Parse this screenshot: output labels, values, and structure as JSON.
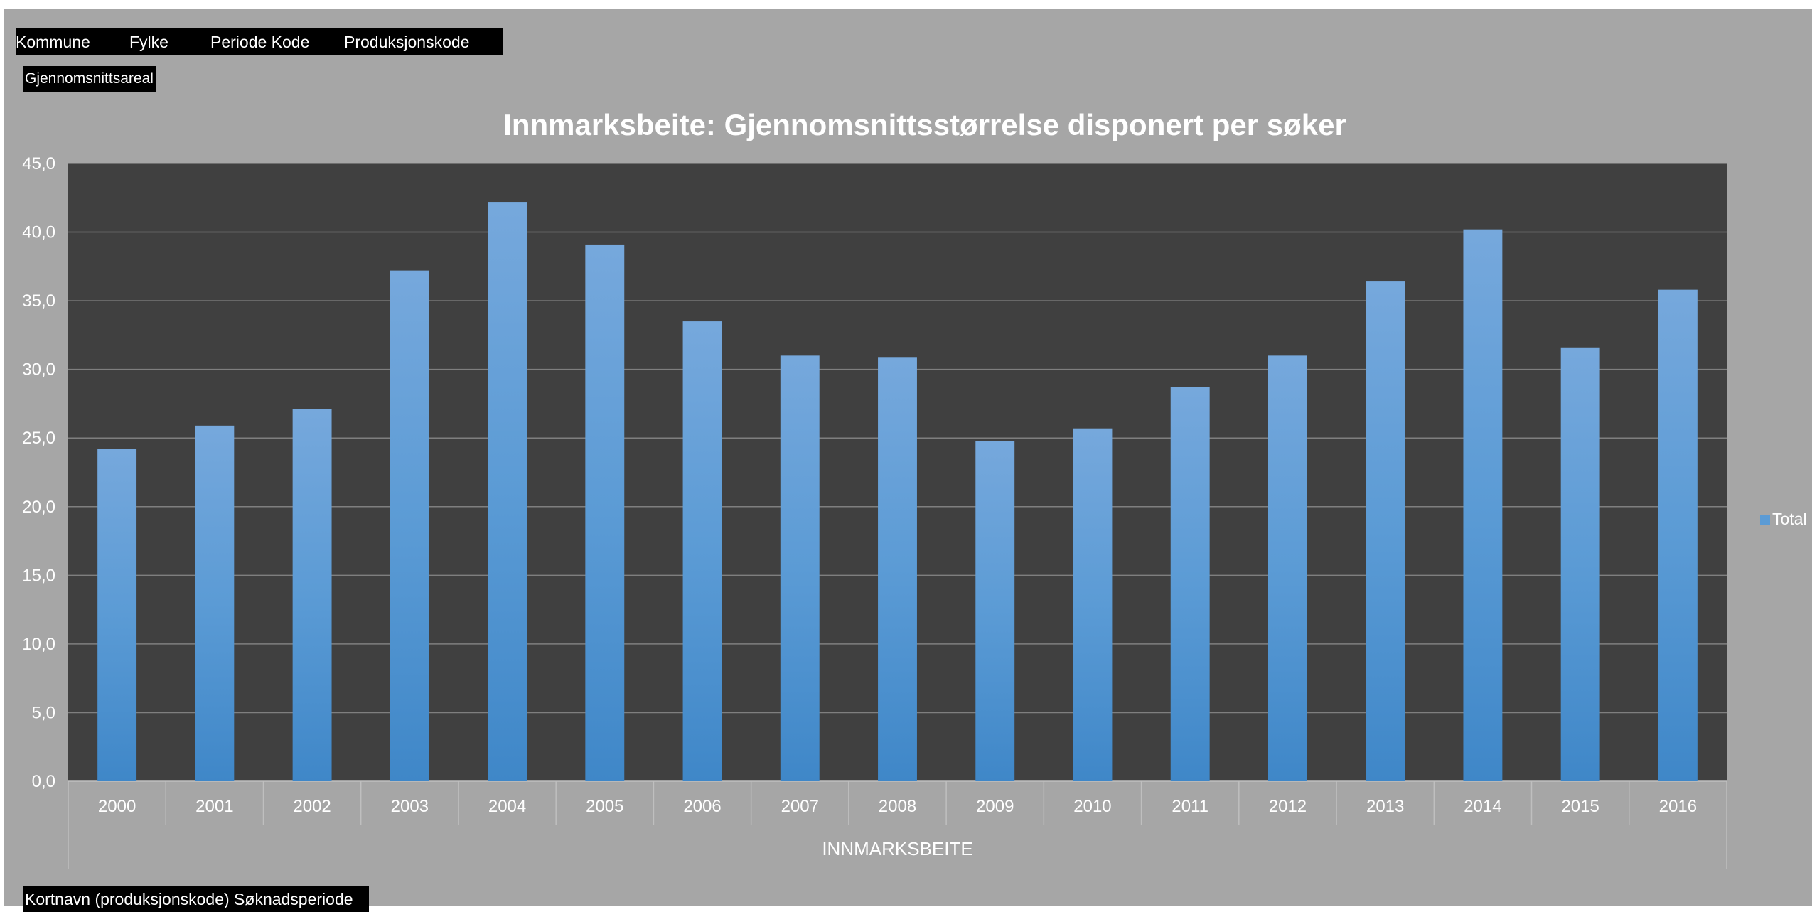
{
  "filters": {
    "kommune": "Kommune",
    "fylke": "Fylke",
    "periode_kode": "Periode Kode",
    "produksjonskode": "Produksjonskode"
  },
  "value_field": "Gjennomsnittsareal",
  "axis_field": "Kortnavn (produksjonskode) Søknadsperiode",
  "colors": {
    "background": "#a6a6a6",
    "plot_area": "#404040",
    "bar": "#5b9bd5",
    "gridline": "#7f7f7f"
  },
  "chart_data": {
    "type": "bar",
    "title": "Innmarksbeite: Gjennomsnittsstørrelse disponert per søker",
    "group_label": "INNMARKSBEITE",
    "categories": [
      "2000",
      "2001",
      "2002",
      "2003",
      "2004",
      "2005",
      "2006",
      "2007",
      "2008",
      "2009",
      "2010",
      "2011",
      "2012",
      "2013",
      "2014",
      "2015",
      "2016"
    ],
    "series": [
      {
        "name": "Total",
        "values": [
          24.2,
          25.9,
          27.1,
          37.2,
          42.2,
          39.1,
          33.5,
          31.0,
          30.9,
          24.8,
          25.7,
          28.7,
          31.0,
          36.4,
          40.2,
          31.6,
          35.8
        ]
      }
    ],
    "ylim": [
      0,
      45
    ],
    "yticks": [
      "0,0",
      "5,0",
      "10,0",
      "15,0",
      "20,0",
      "25,0",
      "30,0",
      "35,0",
      "40,0",
      "45,0"
    ],
    "grid": true,
    "legend_position": "right"
  }
}
